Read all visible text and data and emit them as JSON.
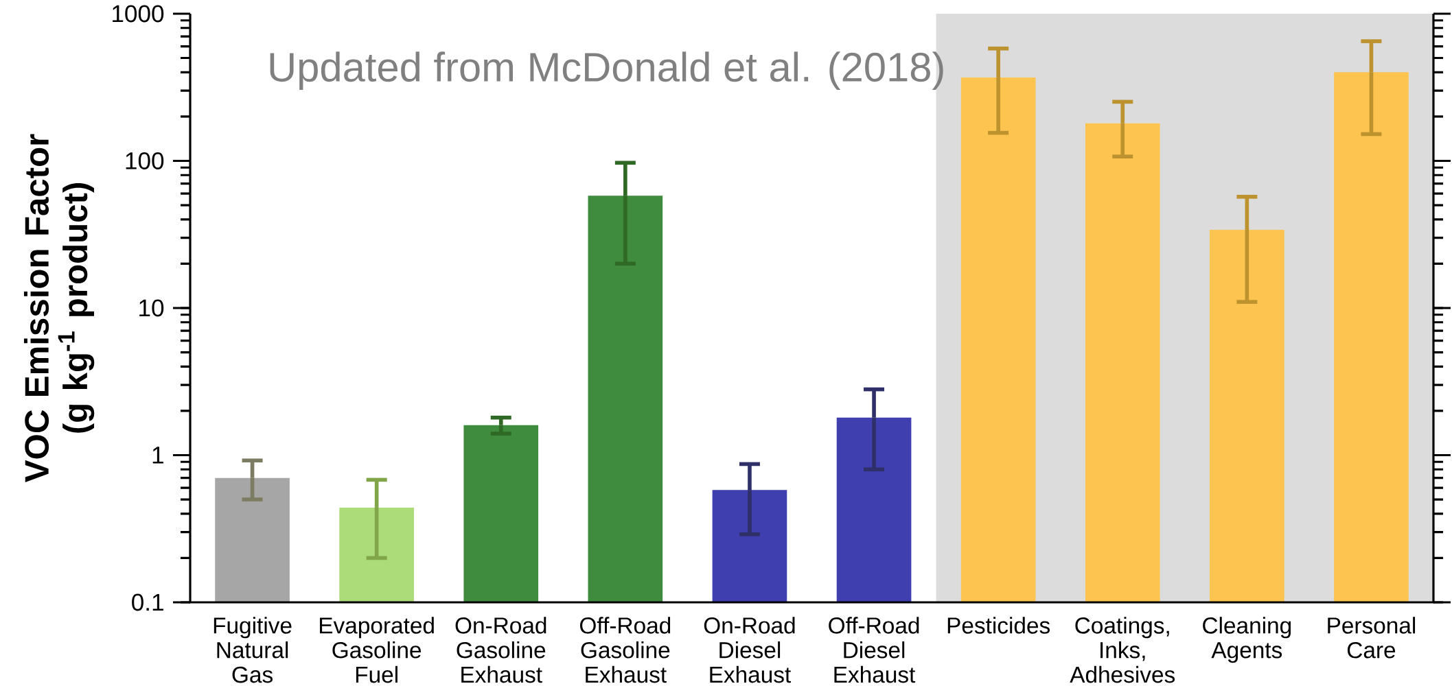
{
  "chart_data": {
    "type": "bar",
    "ylabel": "VOC Emission Factor (g kg$^{-1}$ product)",
    "categories": [
      "Fugitive Natural Gas",
      "Evaporated Gasoline Fuel",
      "On-Road Gasoline Exhaust",
      "Off-Road Gasoline Exhaust",
      "On-Road Diesel Exhaust",
      "Off-Road Diesel Exhaust",
      "Pesticides",
      "Coatings, Inks, Adhesives",
      "Cleaning Agents",
      "Personal Care"
    ],
    "values": [
      0.7,
      0.44,
      1.6,
      58,
      0.58,
      1.8,
      368,
      180,
      34,
      400
    ],
    "errors": [
      [
        0.5,
        0.92
      ],
      [
        0.2,
        0.68
      ],
      [
        1.4,
        1.8
      ],
      [
        20,
        97
      ],
      [
        0.29,
        0.87
      ],
      [
        0.8,
        2.8
      ],
      [
        155,
        580
      ],
      [
        107,
        252
      ],
      [
        11,
        57
      ],
      [
        152,
        650
      ]
    ],
    "colors": [
      "#a6a6a6",
      "#acdc7a",
      "#3f8c3f",
      "#3f8c3f",
      "#3f3fb0",
      "#3f3fb0",
      "#fdc54f",
      "#fdc54f",
      "#fdc54f",
      "#fdc54f"
    ],
    "log": "y",
    "ylim": [
      0.1,
      1000
    ],
    "yticks": [
      0.1,
      1,
      10,
      100,
      1000
    ],
    "bands": [
      {
        "axis": "x",
        "from": "Pesticides",
        "to": "Personal Care",
        "color": "#dcdcdc"
      }
    ],
    "annotations": [
      "Updated from McDonald et al. (2018)"
    ]
  }
}
